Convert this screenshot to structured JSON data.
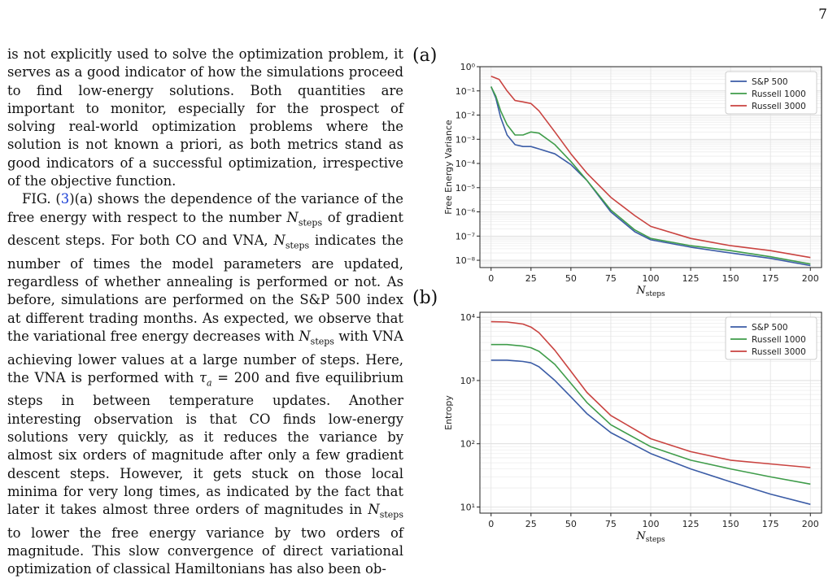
{
  "page_number": "7",
  "body": {
    "p1": "is not explicitly used to solve the optimization problem, it serves as a good indicator of how the simulations proceed to find low-energy solutions. Both quantities are important to monitor, especially for the prospect of solving real-world optimization problems where the solution is not known a priori, as both metrics stand as good indicators of a successful optimization, irrespective of the objective function.",
    "p2a": "FIG. (",
    "p2_ref": "3",
    "p2b": ")(a) shows the dependence of the variance of the free energy with respect to the number N_steps of gradient descent steps. For both CO and VNA, N_steps indicates the number of times the model parameters are updated, regardless of whether annealing is performed or not. As before, simulations are performed on the S&P 500 index at different trading months. As expected, we observe that the variational free energy decreases with N_steps with VNA achieving lower values at a large number of steps. Here, the VNA is performed with τa = 200 and five equilibrium steps in between temperature updates. Another interesting observation is that CO finds low-energy solutions very quickly, as it reduces the variance by almost six orders of magnitude after only a few gradient descent steps. However, it gets stuck on those local minima for very long times, as indicated by the fact that later it takes almost three orders of magnitudes in N_steps to lower the free energy variance by two orders of magnitude. This slow convergence of direct variational optimization of classical Hamiltonians has also been ob-"
  },
  "chart_data": [
    {
      "panel": "(a)",
      "type": "line",
      "ylabel": "Free Energy Variance",
      "xlabel": "N_steps",
      "x_ticks": [
        0,
        25,
        50,
        75,
        100,
        125,
        150,
        175,
        200
      ],
      "xlim": [
        -7,
        207
      ],
      "yscale": "log",
      "ylim": [
        5e-09,
        1
      ],
      "y_ticks": [
        "10⁰",
        "10⁻¹",
        "10⁻²",
        "10⁻³",
        "10⁻⁴",
        "10⁻⁵",
        "10⁻⁶",
        "10⁻⁷",
        "10⁻⁸"
      ],
      "grid": true,
      "legend_position": "top-right",
      "series": [
        {
          "name": "S&P 500",
          "color": "#3b5ca6",
          "points": [
            [
              0,
              0.15
            ],
            [
              3,
              0.05
            ],
            [
              6,
              0.008
            ],
            [
              10,
              0.0015
            ],
            [
              15,
              0.0006
            ],
            [
              20,
              0.0005
            ],
            [
              25,
              0.0005
            ],
            [
              30,
              0.0004
            ],
            [
              40,
              0.00025
            ],
            [
              50,
              9e-05
            ],
            [
              60,
              2e-05
            ],
            [
              75,
              1e-06
            ],
            [
              90,
              1.5e-07
            ],
            [
              100,
              7e-08
            ],
            [
              125,
              3.5e-08
            ],
            [
              150,
              2e-08
            ],
            [
              175,
              1.2e-08
            ],
            [
              200,
              6e-09
            ]
          ]
        },
        {
          "name": "Russell 1000",
          "color": "#3f9c4a",
          "points": [
            [
              0,
              0.15
            ],
            [
              3,
              0.06
            ],
            [
              6,
              0.015
            ],
            [
              10,
              0.004
            ],
            [
              15,
              0.0015
            ],
            [
              20,
              0.0015
            ],
            [
              25,
              0.002
            ],
            [
              30,
              0.0018
            ],
            [
              40,
              0.0006
            ],
            [
              50,
              0.00012
            ],
            [
              60,
              2e-05
            ],
            [
              75,
              1.2e-06
            ],
            [
              90,
              1.8e-07
            ],
            [
              100,
              8e-08
            ],
            [
              125,
              4e-08
            ],
            [
              150,
              2.5e-08
            ],
            [
              175,
              1.4e-08
            ],
            [
              200,
              7e-09
            ]
          ]
        },
        {
          "name": "Russell 3000",
          "color": "#c94340",
          "points": [
            [
              0,
              0.4
            ],
            [
              5,
              0.3
            ],
            [
              10,
              0.1
            ],
            [
              15,
              0.04
            ],
            [
              20,
              0.035
            ],
            [
              25,
              0.03
            ],
            [
              30,
              0.015
            ],
            [
              40,
              0.002
            ],
            [
              50,
              0.00025
            ],
            [
              60,
              4e-05
            ],
            [
              75,
              4e-06
            ],
            [
              90,
              7e-07
            ],
            [
              100,
              2.5e-07
            ],
            [
              125,
              8e-08
            ],
            [
              150,
              4e-08
            ],
            [
              175,
              2.5e-08
            ],
            [
              200,
              1.3e-08
            ]
          ]
        }
      ]
    },
    {
      "panel": "(b)",
      "type": "line",
      "ylabel": "Entropy",
      "xlabel": "N_steps",
      "x_ticks": [
        0,
        25,
        50,
        75,
        100,
        125,
        150,
        175,
        200
      ],
      "xlim": [
        -7,
        207
      ],
      "yscale": "log",
      "ylim": [
        8,
        12000
      ],
      "y_ticks": [
        "10⁴",
        "10³",
        "10²",
        "10¹"
      ],
      "grid": true,
      "legend_position": "top-right",
      "series": [
        {
          "name": "S&P 500",
          "color": "#3b5ca6",
          "points": [
            [
              0,
              2100
            ],
            [
              10,
              2100
            ],
            [
              20,
              2000
            ],
            [
              25,
              1900
            ],
            [
              30,
              1650
            ],
            [
              40,
              1000
            ],
            [
              50,
              550
            ],
            [
              60,
              300
            ],
            [
              75,
              150
            ],
            [
              100,
              70
            ],
            [
              125,
              40
            ],
            [
              150,
              25
            ],
            [
              175,
              16
            ],
            [
              200,
              11
            ]
          ]
        },
        {
          "name": "Russell 1000",
          "color": "#3f9c4a",
          "points": [
            [
              0,
              3700
            ],
            [
              10,
              3700
            ],
            [
              20,
              3500
            ],
            [
              25,
              3300
            ],
            [
              30,
              2900
            ],
            [
              40,
              1800
            ],
            [
              50,
              900
            ],
            [
              60,
              450
            ],
            [
              75,
              200
            ],
            [
              100,
              90
            ],
            [
              125,
              55
            ],
            [
              150,
              40
            ],
            [
              175,
              30
            ],
            [
              200,
              23
            ]
          ]
        },
        {
          "name": "Russell 3000",
          "color": "#c94340",
          "points": [
            [
              0,
              8500
            ],
            [
              10,
              8400
            ],
            [
              20,
              7800
            ],
            [
              25,
              7000
            ],
            [
              30,
              5700
            ],
            [
              40,
              3000
            ],
            [
              50,
              1400
            ],
            [
              60,
              650
            ],
            [
              75,
              280
            ],
            [
              100,
              120
            ],
            [
              125,
              75
            ],
            [
              150,
              55
            ],
            [
              175,
              48
            ],
            [
              200,
              42
            ]
          ]
        }
      ]
    }
  ]
}
